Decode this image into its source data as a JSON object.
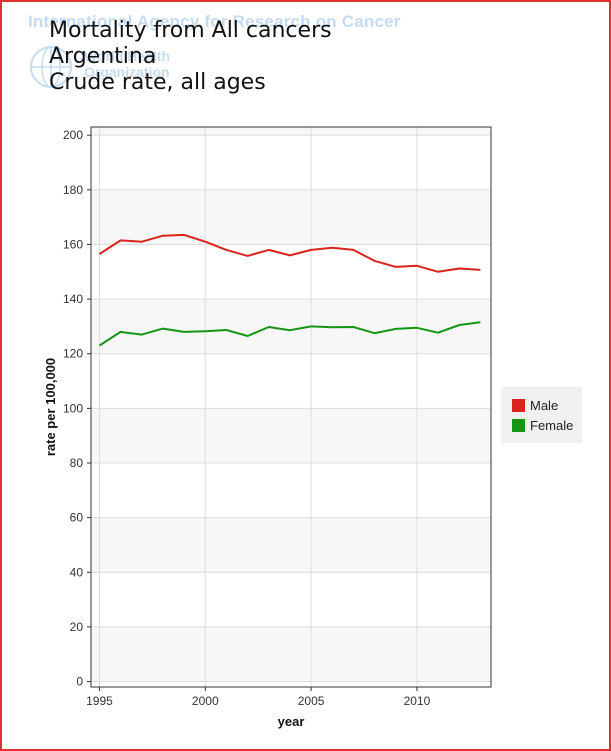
{
  "watermark": {
    "line1": "International Agency for Research on Cancer",
    "line2": "World Health",
    "line3": "Organization"
  },
  "title_lines": [
    "Mortality from All cancers",
    "Argentina",
    "Crude rate, all ages"
  ],
  "colors": {
    "male": "#d9231d",
    "female": "#149614",
    "frame": "#e03030"
  },
  "chart_data": {
    "type": "line",
    "title": "Mortality from All cancers",
    "subtitle": "Argentina",
    "xlabel": "year",
    "ylabel": "rate per 100,000",
    "xlim": [
      1994.6,
      2013.5
    ],
    "ylim": [
      -2,
      203
    ],
    "xticks": [
      1995,
      2000,
      2005,
      2010
    ],
    "yticks": [
      0,
      20,
      40,
      60,
      80,
      100,
      120,
      140,
      160,
      180,
      200
    ],
    "grid": true,
    "legend_position": "right",
    "x": [
      1995,
      1996,
      1997,
      1998,
      1999,
      2000,
      2001,
      2002,
      2003,
      2004,
      2005,
      2006,
      2007,
      2008,
      2009,
      2010,
      2011,
      2012,
      2013
    ],
    "series": [
      {
        "name": "Male",
        "color": "#d9231d",
        "values": [
          156.5,
          161.5,
          161.0,
          163.2,
          163.5,
          161.0,
          158.0,
          155.8,
          158.0,
          156.0,
          158.0,
          158.8,
          158.0,
          154.0,
          151.8,
          152.2,
          150.0,
          151.2,
          150.7
        ]
      },
      {
        "name": "Female",
        "color": "#149614",
        "values": [
          123.0,
          128.0,
          127.0,
          129.2,
          128.0,
          128.2,
          128.7,
          126.5,
          129.8,
          128.6,
          130.0,
          129.7,
          129.8,
          127.5,
          129.1,
          129.5,
          127.7,
          130.5,
          131.5
        ]
      }
    ]
  }
}
